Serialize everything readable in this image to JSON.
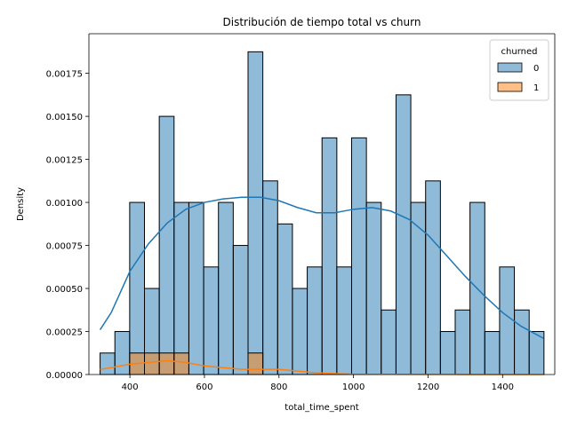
{
  "chart_data": {
    "type": "histogram",
    "title": "Distribución de tiempo total vs churn",
    "xlabel": "total_time_spent",
    "ylabel": "Density",
    "xlim": [
      290,
      1540
    ],
    "ylim": [
      0,
      0.00198
    ],
    "xticks": [
      400,
      600,
      800,
      1000,
      1200,
      1400
    ],
    "yticks": [
      0.0,
      0.00025,
      0.0005,
      0.00075,
      0.001,
      0.00125,
      0.0015,
      0.00175
    ],
    "ytick_labels": [
      "0.00000",
      "0.00025",
      "0.00050",
      "0.00075",
      "0.00100",
      "0.00125",
      "0.00150",
      "0.00175"
    ],
    "xtick_labels": [
      "400",
      "600",
      "800",
      "1000",
      "1200",
      "1400"
    ],
    "grid": false,
    "bin_start": 320,
    "bin_width": 39.7,
    "legend": {
      "title": "churned",
      "placement": "top-right"
    },
    "series": [
      {
        "name": "0",
        "color": "#1f77b4",
        "values": [
          0.000125,
          0.00025,
          0.001,
          0.0005,
          0.0015,
          0.001,
          0.001,
          0.000625,
          0.001,
          0.00075,
          0.001875,
          0.001125,
          0.000875,
          0.0005,
          0.000625,
          0.001375,
          0.000625,
          0.001375,
          0.001,
          0.000375,
          0.001625,
          0.001,
          0.001125,
          0.00025,
          0.000375,
          0.001,
          0.00025,
          0.000625,
          0.000375,
          0.00025
        ],
        "kde_x": [
          320,
          350,
          400,
          450,
          500,
          550,
          600,
          650,
          700,
          750,
          800,
          850,
          900,
          950,
          1000,
          1050,
          1100,
          1150,
          1200,
          1250,
          1300,
          1350,
          1400,
          1450,
          1510
        ],
        "kde_y": [
          0.00026,
          0.00036,
          0.0006,
          0.00076,
          0.00088,
          0.00096,
          0.001,
          0.00102,
          0.00103,
          0.00103,
          0.00101,
          0.00097,
          0.00094,
          0.00094,
          0.00096,
          0.00097,
          0.00095,
          0.0009,
          0.00081,
          0.00069,
          0.00057,
          0.00046,
          0.00036,
          0.00028,
          0.00021
        ]
      },
      {
        "name": "1",
        "color": "#ff7f0e",
        "values": [
          0,
          0,
          0.000125,
          0.000125,
          0.000125,
          0.000125,
          0,
          0,
          0,
          0,
          0.000125,
          0,
          0,
          0,
          0,
          0,
          0,
          0,
          0,
          0,
          0,
          0,
          0,
          0,
          0,
          0,
          0,
          0,
          0,
          0
        ],
        "kde_x": [
          320,
          350,
          400,
          450,
          500,
          550,
          600,
          650,
          700,
          750,
          800,
          850,
          900,
          950,
          1000,
          1100,
          1200,
          1300,
          1400,
          1510
        ],
        "kde_y": [
          3e-05,
          4e-05,
          6e-05,
          7e-05,
          8e-05,
          7e-05,
          5e-05,
          4e-05,
          3e-05,
          3e-05,
          3e-05,
          2e-05,
          1e-05,
          5e-06,
          2e-06,
          1e-06,
          5e-07,
          3e-07,
          2e-07,
          1e-07
        ]
      }
    ]
  }
}
